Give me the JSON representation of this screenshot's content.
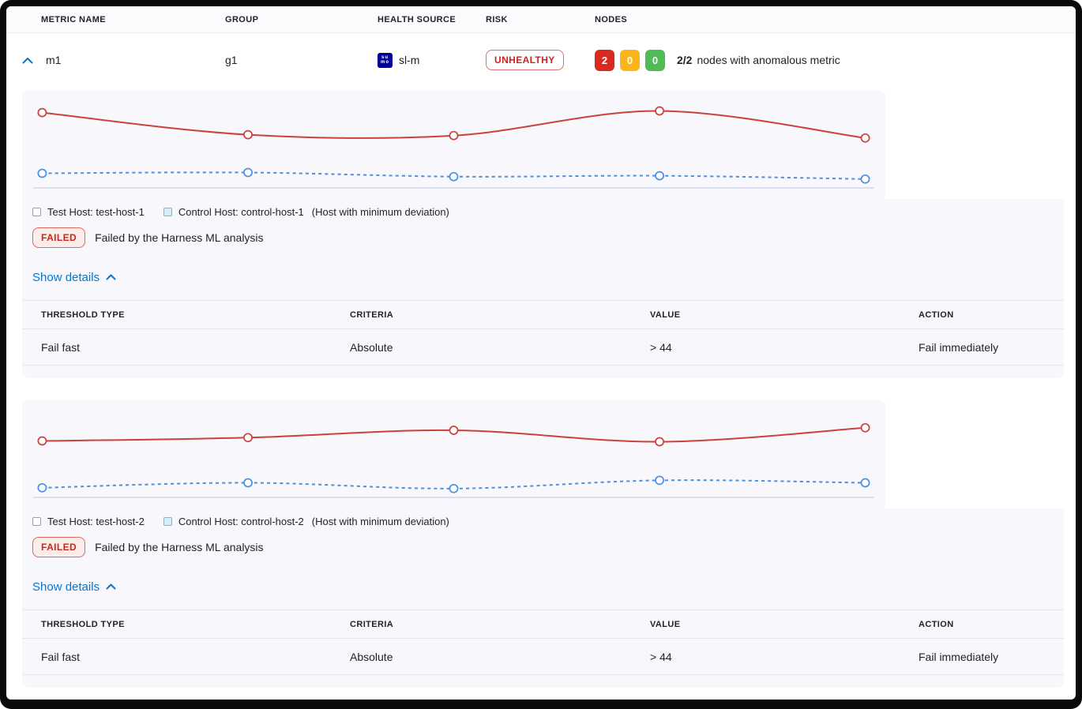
{
  "header": {
    "columns": [
      "METRIC NAME",
      "GROUP",
      "HEALTH SOURCE",
      "RISK",
      "NODES"
    ]
  },
  "metric_row": {
    "metric_name": "m1",
    "group": "g1",
    "health_source": {
      "icon_line1": "su",
      "icon_line2": "mo",
      "icon_color": "#000099",
      "label": "sl-m"
    },
    "risk": {
      "label": "UNHEALTHY",
      "color": "#c9261d"
    },
    "nodes": {
      "counts": [
        {
          "value": "2",
          "color": "#da291e"
        },
        {
          "value": "0",
          "color": "#fcb519"
        },
        {
          "value": "0",
          "color": "#4fba56"
        }
      ],
      "ratio": "2/2",
      "description": "nodes with anomalous metric"
    }
  },
  "sections": [
    {
      "legend": {
        "test_label": "Test Host: test-host-1",
        "control_label": "Control Host: control-host-1",
        "note": "(Host with minimum deviation)"
      },
      "status": {
        "badge": "FAILED",
        "message": "Failed by the Harness ML analysis"
      },
      "details_toggle": "Show details",
      "table": {
        "columns": [
          "THRESHOLD TYPE",
          "CRITERIA",
          "VALUE",
          "ACTION"
        ],
        "rows": [
          [
            "Fail fast",
            "Absolute",
            "> 44",
            "Fail immediately"
          ]
        ]
      }
    },
    {
      "legend": {
        "test_label": "Test Host: test-host-2",
        "control_label": "Control Host: control-host-2",
        "note": "(Host with minimum deviation)"
      },
      "status": {
        "badge": "FAILED",
        "message": "Failed by the Harness ML analysis"
      },
      "details_toggle": "Show details",
      "table": {
        "columns": [
          "THRESHOLD TYPE",
          "CRITERIA",
          "VALUE",
          "ACTION"
        ],
        "rows": [
          [
            "Fail fast",
            "Absolute",
            "> 44",
            "Fail immediately"
          ]
        ]
      }
    }
  ],
  "chart_data": [
    {
      "type": "line",
      "x": [
        1,
        2,
        3,
        4,
        5
      ],
      "ylim": [
        0,
        100
      ],
      "grid": false,
      "legend_position": "bottom",
      "series": [
        {
          "name": "Test Host: test-host-1",
          "color": "#cb423d",
          "style": "solid",
          "values": [
            86,
            59,
            58,
            88,
            55
          ]
        },
        {
          "name": "Control Host: control-host-1",
          "color": "#4c90e0",
          "style": "dashed",
          "values": [
            12,
            13,
            8,
            9,
            5
          ]
        }
      ]
    },
    {
      "type": "line",
      "x": [
        1,
        2,
        3,
        4,
        5
      ],
      "ylim": [
        0,
        100
      ],
      "grid": false,
      "legend_position": "bottom",
      "series": [
        {
          "name": "Test Host: test-host-2",
          "color": "#cb423d",
          "style": "solid",
          "values": [
            63,
            67,
            76,
            62,
            79
          ]
        },
        {
          "name": "Control Host: control-host-2",
          "color": "#4c90e0",
          "style": "dashed",
          "values": [
            6,
            12,
            5,
            15,
            12
          ]
        }
      ]
    }
  ],
  "colors": {
    "accent_blue": "#0278d5",
    "panel_background": "#f7f7fc",
    "baseline": "#ccd2e4"
  }
}
